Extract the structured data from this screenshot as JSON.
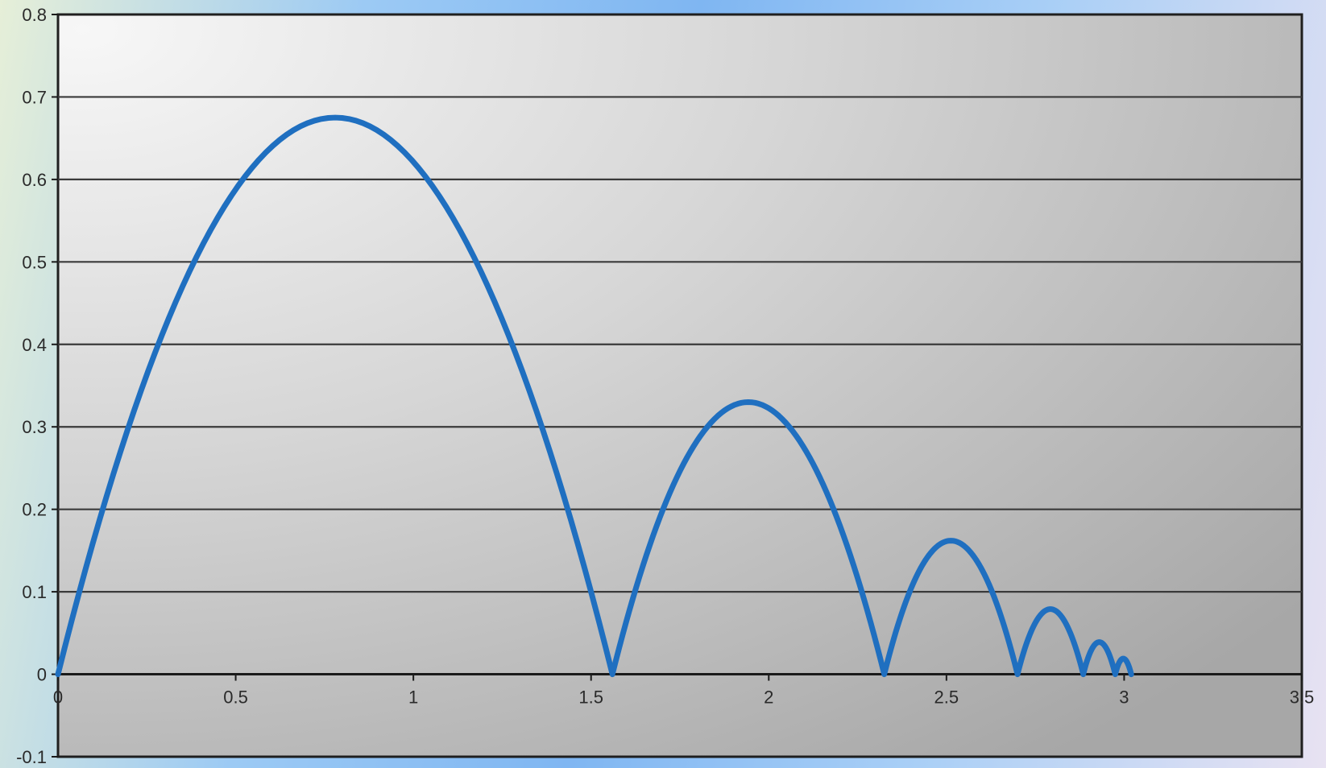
{
  "chart_data": {
    "type": "line",
    "title": "",
    "xlabel": "",
    "ylabel": "",
    "xlim": [
      0,
      3.5
    ],
    "ylim": [
      -0.1,
      0.8
    ],
    "x_ticks": [
      "0",
      "0.5",
      "1",
      "1.5",
      "2",
      "2.5",
      "3",
      "3.5"
    ],
    "y_ticks": [
      "-0.1",
      "0",
      "0.1",
      "0.2",
      "0.3",
      "0.4",
      "0.5",
      "0.6",
      "0.7",
      "0.8"
    ],
    "grid": "horizontal",
    "legend": "none",
    "series_color": "#1f6fc0",
    "series": [
      {
        "bounces": [
          {
            "start": 0.0,
            "end": 1.56,
            "peak": 0.675
          },
          {
            "start": 1.56,
            "end": 2.325,
            "peak": 0.33
          },
          {
            "start": 2.325,
            "end": 2.7,
            "peak": 0.162
          },
          {
            "start": 2.7,
            "end": 2.885,
            "peak": 0.079
          },
          {
            "start": 2.885,
            "end": 2.975,
            "peak": 0.039
          },
          {
            "start": 2.975,
            "end": 3.02,
            "peak": 0.019
          }
        ]
      }
    ]
  }
}
